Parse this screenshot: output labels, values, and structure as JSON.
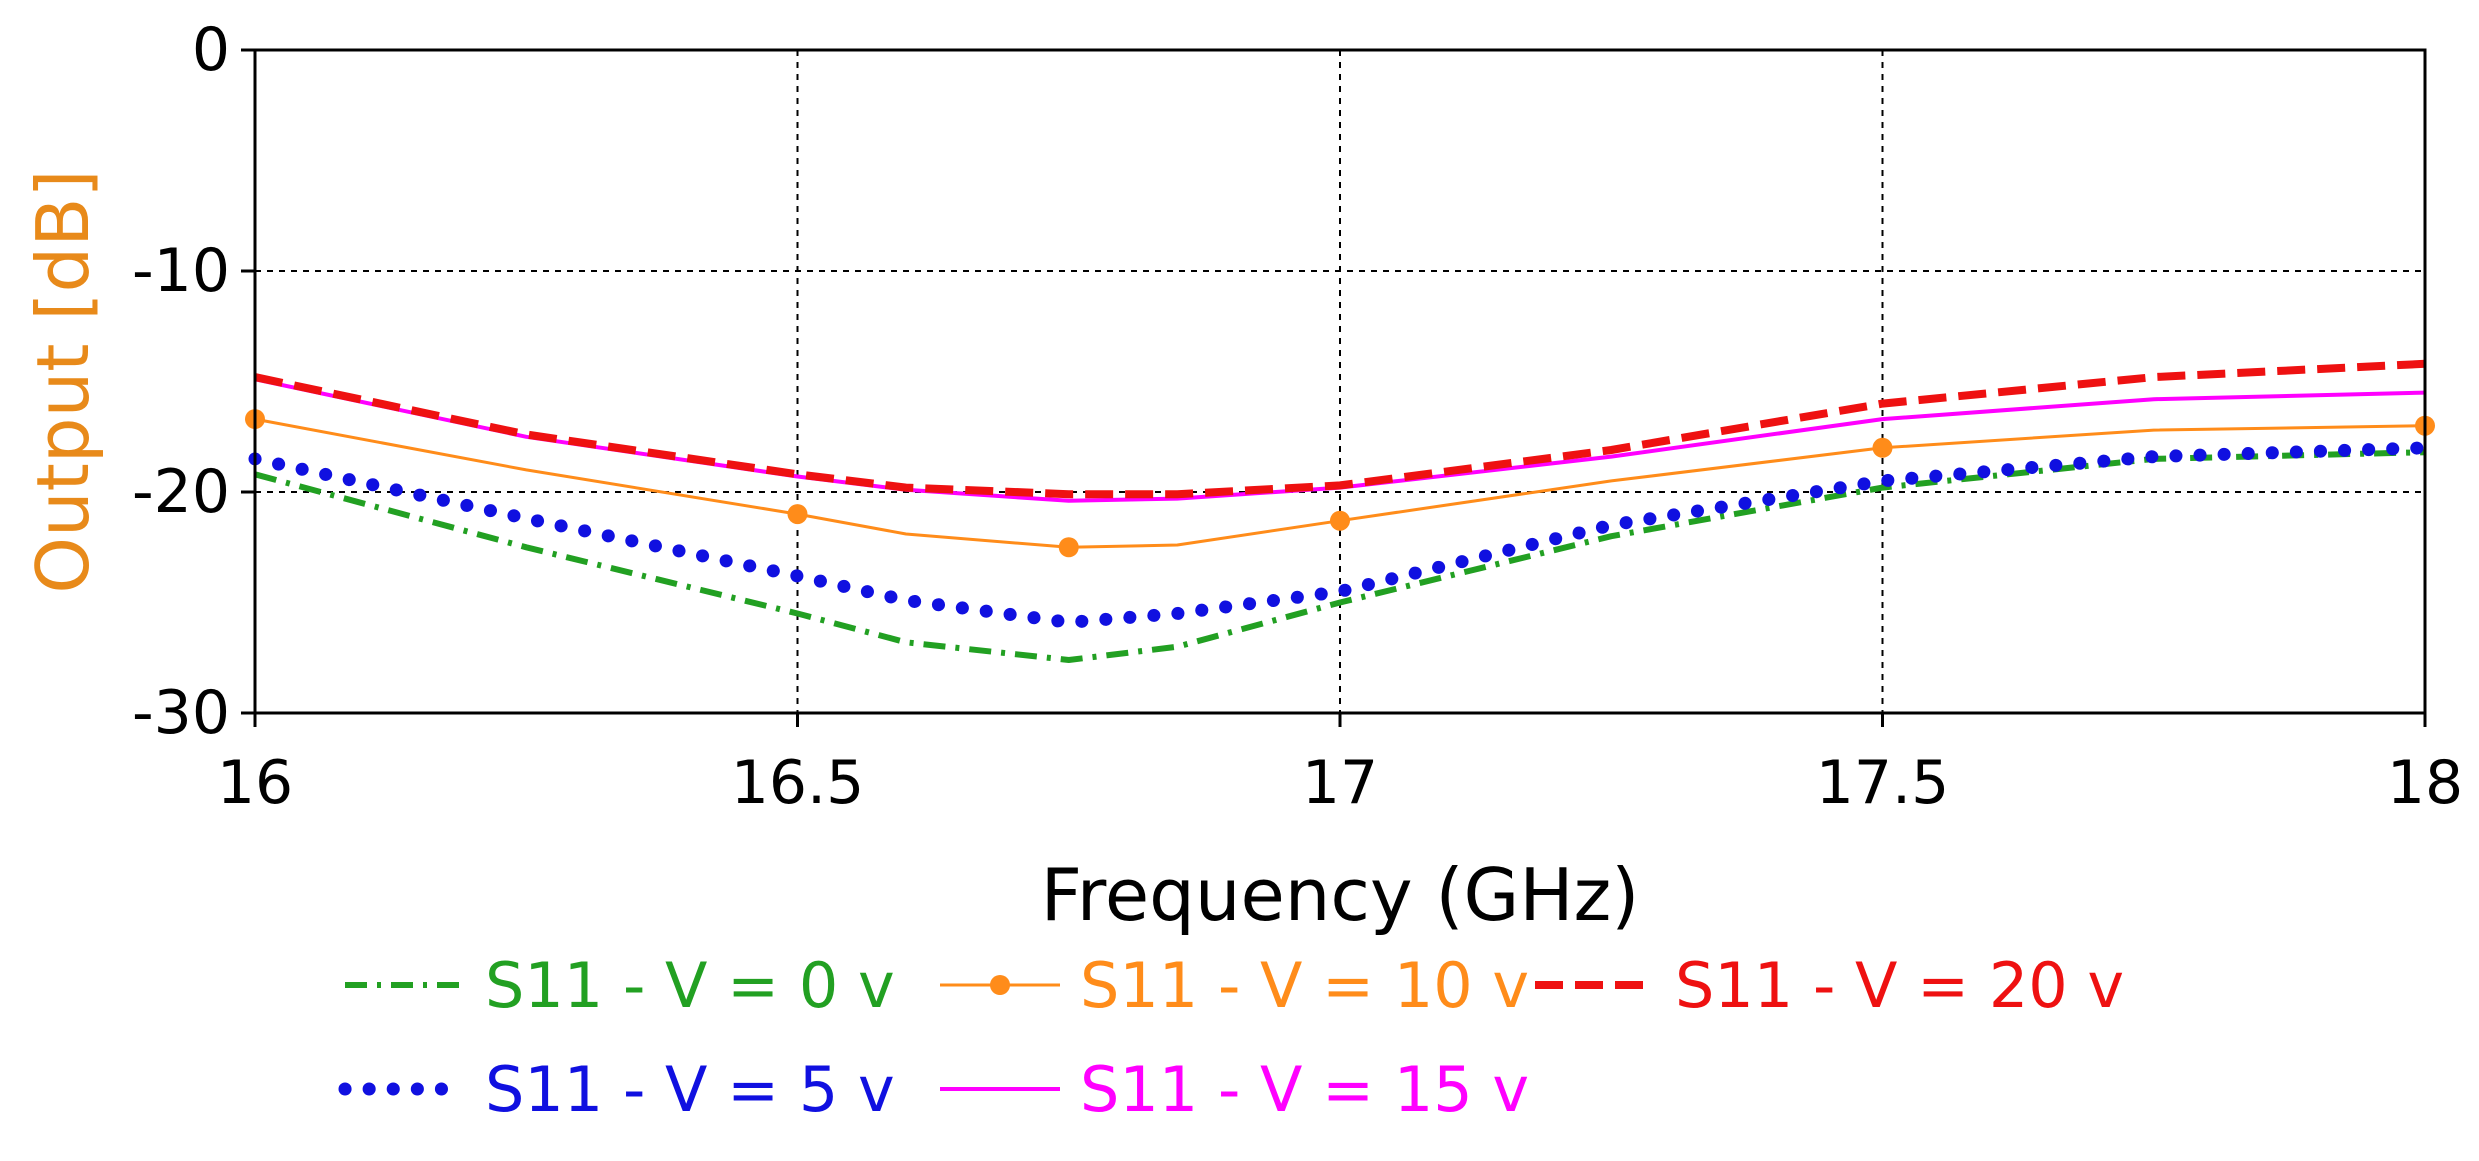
{
  "chart_data": {
    "type": "line",
    "title": "",
    "xlabel": "Frequency (GHz)",
    "ylabel": "Output [dB]",
    "xlim": [
      16,
      18
    ],
    "ylim": [
      -30,
      0
    ],
    "xticks": [
      16,
      16.5,
      17,
      17.5,
      18
    ],
    "xtick_labels": [
      "16",
      "16.5",
      "17",
      "17.5",
      "18"
    ],
    "yticks": [
      0,
      -10,
      -20,
      -30
    ],
    "ytick_labels": [
      "0",
      "-10",
      "-20",
      "-30"
    ],
    "grid": true,
    "legend_position": "bottom",
    "x": [
      16.0,
      16.25,
      16.5,
      16.6,
      16.75,
      16.85,
      17.0,
      17.25,
      17.5,
      17.75,
      18.0
    ],
    "series": [
      {
        "name": "S11 - V = 0 v",
        "color": "#22a022",
        "style": "dashdot",
        "values": [
          -19.2,
          -22.5,
          -25.5,
          -26.8,
          -27.6,
          -27.0,
          -25.0,
          -22.0,
          -19.8,
          -18.5,
          -18.2
        ]
      },
      {
        "name": "S11 - V = 5 v",
        "color": "#1010e0",
        "style": "dotted",
        "values": [
          -18.5,
          -21.2,
          -23.8,
          -24.9,
          -25.9,
          -25.5,
          -24.5,
          -21.5,
          -19.5,
          -18.4,
          -18.0
        ]
      },
      {
        "name": "S11 - V = 10 v",
        "color": "#ff8c1a",
        "style": "solid-marker",
        "values": [
          -16.7,
          -19.0,
          -21.0,
          -21.9,
          -22.5,
          -22.4,
          -21.3,
          -19.5,
          -18.0,
          -17.2,
          -17.0
        ]
      },
      {
        "name": "S11 - V = 15 v",
        "color": "#ff00ff",
        "style": "solid",
        "values": [
          -14.9,
          -17.5,
          -19.3,
          -19.9,
          -20.4,
          -20.3,
          -19.8,
          -18.4,
          -16.7,
          -15.8,
          -15.5
        ]
      },
      {
        "name": "S11 - V = 20 v",
        "color": "#ee1111",
        "style": "dashed",
        "values": [
          -14.8,
          -17.4,
          -19.2,
          -19.8,
          -20.1,
          -20.1,
          -19.7,
          -18.1,
          -16.0,
          -14.8,
          -14.2
        ]
      }
    ],
    "ylabel_color": "#e88a1a",
    "legend_layout": [
      [
        "S11 - V = 0 v",
        "S11 - V = 10 v",
        "S11 - V = 20 v"
      ],
      [
        "S11 - V = 5 v",
        "S11 - V = 15 v"
      ]
    ]
  }
}
